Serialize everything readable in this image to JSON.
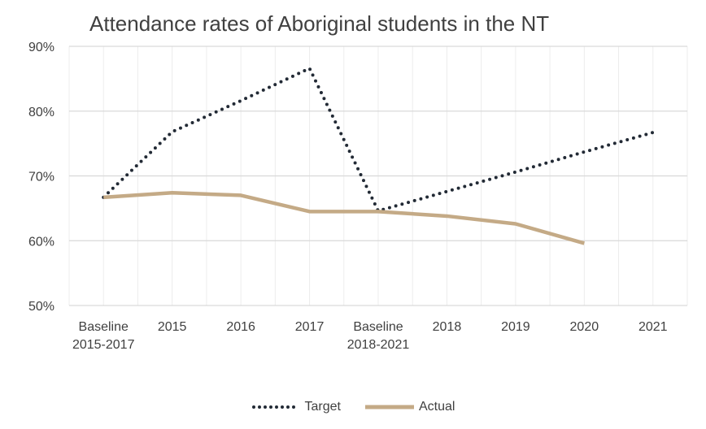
{
  "chart_data": {
    "type": "line",
    "title": "Attendance rates of Aboriginal students in the NT",
    "categories": [
      [
        "Baseline",
        "2015-2017"
      ],
      [
        "2015"
      ],
      [
        "2016"
      ],
      [
        "2017"
      ],
      [
        "Baseline",
        "2018-2021"
      ],
      [
        "2018"
      ],
      [
        "2019"
      ],
      [
        "2020"
      ],
      [
        "2021"
      ]
    ],
    "ylim": [
      50,
      90
    ],
    "yticks": [
      50,
      60,
      70,
      80,
      90
    ],
    "ytick_labels": [
      "50%",
      "60%",
      "70%",
      "80%",
      "90%"
    ],
    "grid": true,
    "legend_position": "bottom",
    "series": [
      {
        "name": "Target",
        "color": "#222a35",
        "style": "dotted",
        "values": [
          66.7,
          76.8,
          81.6,
          86.6,
          64.6,
          67.6,
          70.6,
          73.7,
          76.7
        ]
      },
      {
        "name": "Actual",
        "color": "#c4aa86",
        "style": "solid",
        "values": [
          66.7,
          67.4,
          67.0,
          64.5,
          64.5,
          63.8,
          62.6,
          59.6,
          null
        ]
      }
    ]
  }
}
